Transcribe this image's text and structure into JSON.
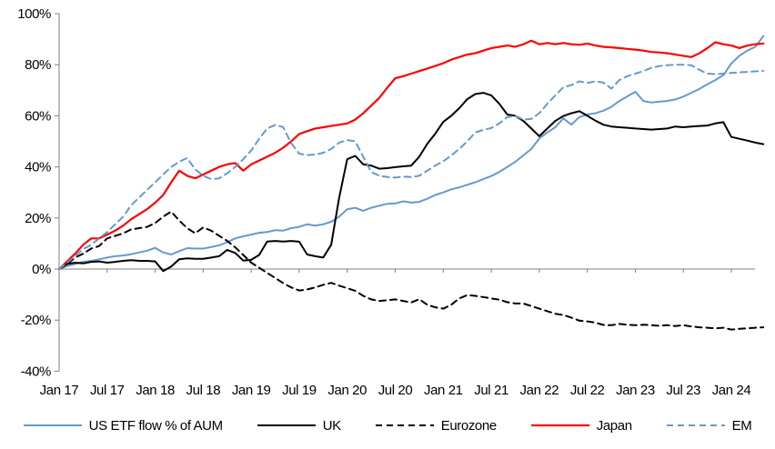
{
  "chart_data": {
    "type": "line",
    "title": "",
    "xlabel": "",
    "ylabel": "",
    "ylim": [
      -40,
      100
    ],
    "grid": false,
    "legend_position": "bottom",
    "x_unit": "months since Jan 2017",
    "y_axis": {
      "ticks": [
        {
          "value": 100,
          "label": "100%"
        },
        {
          "value": 80,
          "label": "80%"
        },
        {
          "value": 60,
          "label": "60%"
        },
        {
          "value": 40,
          "label": "40%"
        },
        {
          "value": 20,
          "label": "20%"
        },
        {
          "value": 0,
          "label": "0%"
        },
        {
          "value": -20,
          "label": "-20%"
        },
        {
          "value": -40,
          "label": "-40%"
        }
      ]
    },
    "x_axis": {
      "ticks": [
        {
          "month": 0,
          "label": "Jan 17"
        },
        {
          "month": 6,
          "label": "Jul 17"
        },
        {
          "month": 12,
          "label": "Jan 18"
        },
        {
          "month": 18,
          "label": "Jul 18"
        },
        {
          "month": 24,
          "label": "Jan 19"
        },
        {
          "month": 30,
          "label": "Jul 19"
        },
        {
          "month": 36,
          "label": "Jan 20"
        },
        {
          "month": 42,
          "label": "Jul 20"
        },
        {
          "month": 48,
          "label": "Jan 21"
        },
        {
          "month": 54,
          "label": "Jul 21"
        },
        {
          "month": 60,
          "label": "Jan 22"
        },
        {
          "month": 66,
          "label": "Jul 22"
        },
        {
          "month": 72,
          "label": "Jan 23"
        },
        {
          "month": 78,
          "label": "Jul 23"
        },
        {
          "month": 84,
          "label": "Jan 24"
        }
      ]
    },
    "axis_color": "#808080",
    "series": [
      {
        "name": "US ETF flow % of AUM",
        "color": "#6699CC",
        "style": "solid",
        "width": 2,
        "values": [
          0,
          1.2,
          2,
          2.8,
          3.2,
          3.8,
          4.5,
          5,
          5.3,
          5.8,
          6.5,
          7.2,
          8.3,
          6.5,
          5.7,
          7,
          8.2,
          8,
          8,
          8.6,
          9.3,
          10.5,
          12,
          12.8,
          13.5,
          14.2,
          14.5,
          15.2,
          15,
          16,
          16.5,
          17.5,
          17,
          17.5,
          18.5,
          20.5,
          23.4,
          24,
          22.8,
          24,
          24.8,
          25.5,
          25.7,
          26.5,
          26,
          26.3,
          27.5,
          29,
          30,
          31.2,
          32,
          33,
          34,
          35.2,
          36.4,
          38,
          40,
          42,
          44.5,
          47,
          51.1,
          53.5,
          55.5,
          59,
          56.5,
          59.5,
          60.5,
          61,
          62,
          63.5,
          65.8,
          67.6,
          69.4,
          65.8,
          65.2,
          65.5,
          65.8,
          66.4,
          67.5,
          69,
          70.5,
          72.3,
          74,
          75.9,
          80.5,
          83.5,
          85.5,
          87,
          91.2
        ]
      },
      {
        "name": "UK",
        "color": "#000000",
        "style": "solid",
        "width": 2,
        "values": [
          0,
          2,
          2.5,
          2.2,
          2.8,
          3,
          2.5,
          2.8,
          3.2,
          3.5,
          3.2,
          3.2,
          3,
          -0.8,
          1,
          3.8,
          4.2,
          4,
          4,
          4.5,
          5,
          7.5,
          6.3,
          3.3,
          3.6,
          5.5,
          10.8,
          11,
          10.8,
          11,
          10.7,
          5.7,
          5,
          4.5,
          9.5,
          28,
          43,
          44.3,
          41,
          40.5,
          39.3,
          39.5,
          39.9,
          40.2,
          40.5,
          44,
          49,
          53,
          57.6,
          60,
          63,
          66.5,
          68.5,
          69,
          68,
          64.7,
          60.5,
          60,
          58,
          55,
          52,
          55,
          58,
          59.9,
          61,
          61.8,
          60,
          58.1,
          56.5,
          55.8,
          55.5,
          55.3,
          55,
          54.8,
          54.6,
          54.8,
          55,
          55.8,
          55.5,
          55.8,
          56,
          56.2,
          57,
          57.5,
          51.7,
          51,
          50.3,
          49.5,
          48.9
        ]
      },
      {
        "name": "Eurozone",
        "color": "#000000",
        "style": "dashed",
        "width": 2,
        "values": [
          0,
          2,
          4.5,
          6,
          8,
          9,
          12,
          13,
          14,
          15.5,
          16,
          16.5,
          18,
          20.5,
          22.5,
          19,
          16,
          14,
          16.3,
          15,
          13,
          11,
          8.5,
          5.5,
          2.5,
          0.5,
          -1.5,
          -3.5,
          -5.5,
          -7.2,
          -8.4,
          -8,
          -7.2,
          -6.2,
          -5.4,
          -6.5,
          -7.5,
          -8.5,
          -10.5,
          -11.9,
          -12.5,
          -12.2,
          -11.9,
          -12.5,
          -13.1,
          -11.8,
          -14,
          -15,
          -15.5,
          -14,
          -11.5,
          -10.2,
          -10.5,
          -11,
          -11.5,
          -12,
          -13,
          -13.5,
          -13.5,
          -14.5,
          -15.5,
          -16.5,
          -17.5,
          -18,
          -19,
          -20.2,
          -20.5,
          -21,
          -21.9,
          -22,
          -21.5,
          -21.8,
          -22,
          -21.8,
          -22,
          -22.2,
          -22,
          -22.3,
          -22,
          -22.5,
          -22.8,
          -23,
          -23.2,
          -23,
          -23.7,
          -23.4,
          -23.2,
          -23,
          -22.8
        ]
      },
      {
        "name": "Japan",
        "color": "#FF0000",
        "style": "solid",
        "width": 2.2,
        "values": [
          0,
          3,
          6,
          9.5,
          12,
          12,
          13.5,
          15,
          17,
          19.5,
          21.5,
          23.5,
          26,
          29,
          34,
          38.5,
          36.5,
          35.5,
          37,
          38.5,
          40,
          41,
          41.5,
          38.5,
          41,
          42.5,
          44,
          45.5,
          47.5,
          50,
          52.9,
          54,
          55,
          55.5,
          56,
          56.5,
          57,
          58.5,
          61,
          64,
          67,
          71,
          74.7,
          75.5,
          76.5,
          77.5,
          78.5,
          79.5,
          80.6,
          82,
          83,
          84,
          84.5,
          85.5,
          86.5,
          87,
          87.5,
          87,
          88,
          89.4,
          88,
          88.5,
          88,
          88.5,
          88,
          87.8,
          88.3,
          87.5,
          87,
          86.8,
          86.5,
          86.2,
          85.9,
          85.5,
          85,
          84.8,
          84.5,
          84,
          83.5,
          83,
          84.5,
          86.5,
          88.8,
          88,
          87.5,
          86.5,
          87.5,
          88,
          88.3
        ]
      },
      {
        "name": "EM",
        "color": "#6699CC",
        "style": "dashed",
        "width": 2,
        "values": [
          0,
          2.5,
          5,
          7.8,
          9.5,
          12,
          14.5,
          17.5,
          20.5,
          25,
          28,
          31,
          34,
          37,
          40,
          42,
          43.5,
          39,
          36.5,
          35.2,
          35.5,
          37.5,
          40,
          43,
          46.4,
          51,
          55,
          56.4,
          55.6,
          49.3,
          45.2,
          44.6,
          44.8,
          45.5,
          47,
          49.5,
          50.5,
          50,
          44,
          38,
          36.5,
          36,
          35.8,
          36.2,
          36,
          36.5,
          38.5,
          40.5,
          42.2,
          44.5,
          47,
          50,
          53.5,
          54.5,
          55.2,
          57,
          59.5,
          60,
          58.5,
          58.8,
          61,
          64.7,
          68,
          71.2,
          72,
          73.5,
          72.9,
          73.5,
          73,
          70.6,
          74,
          75.5,
          76.5,
          77.5,
          78.8,
          79.5,
          79.8,
          80,
          80,
          79.8,
          78,
          76.5,
          76.3,
          76.5,
          76.8,
          77,
          77.2,
          77.4,
          77.6
        ]
      }
    ]
  }
}
